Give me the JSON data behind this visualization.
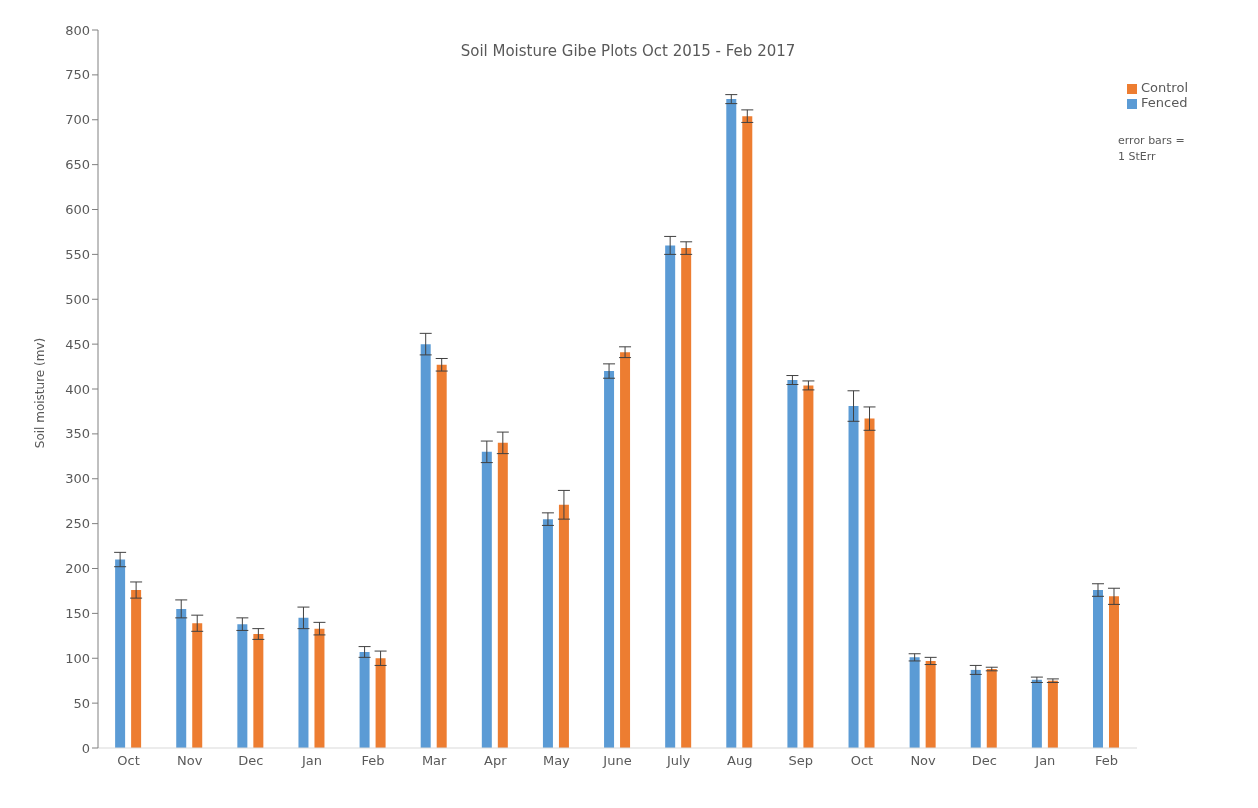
{
  "chart_data": {
    "type": "bar",
    "title": "Soil Moisture Gibe Plots Oct 2015 - Feb 2017",
    "ylabel": "Soil moisture (mv)",
    "categories": [
      "Oct",
      "Nov",
      "Dec",
      "Jan",
      "Feb",
      "Mar",
      "Apr",
      "May",
      "June",
      "July",
      "Aug",
      "Sep",
      "Oct",
      "Nov",
      "Dec",
      "Jan",
      "Feb"
    ],
    "series": [
      {
        "name": "Fenced",
        "color": "#5b9bd5",
        "values": [
          210,
          155,
          138,
          145,
          107,
          450,
          330,
          255,
          420,
          560,
          723,
          410,
          381,
          101,
          87,
          76,
          176
        ],
        "errors": [
          8,
          10,
          7,
          12,
          6,
          12,
          12,
          7,
          8,
          10,
          5,
          5,
          17,
          4,
          5,
          3,
          7
        ]
      },
      {
        "name": "Control",
        "color": "#ed7d31",
        "values": [
          176,
          139,
          127,
          133,
          100,
          427,
          340,
          271,
          441,
          557,
          704,
          404,
          367,
          97,
          88,
          75,
          169
        ],
        "errors": [
          9,
          9,
          6,
          7,
          8,
          7,
          12,
          16,
          6,
          7,
          7,
          5,
          13,
          4,
          2,
          2,
          9
        ]
      }
    ],
    "ylim": [
      0,
      800
    ],
    "yticks": [
      0,
      50,
      100,
      150,
      200,
      250,
      300,
      350,
      400,
      450,
      500,
      550,
      600,
      650,
      700,
      750,
      800
    ],
    "grid": false,
    "legend": "top right",
    "annotations": [
      "error bars = 1 StErr"
    ]
  }
}
